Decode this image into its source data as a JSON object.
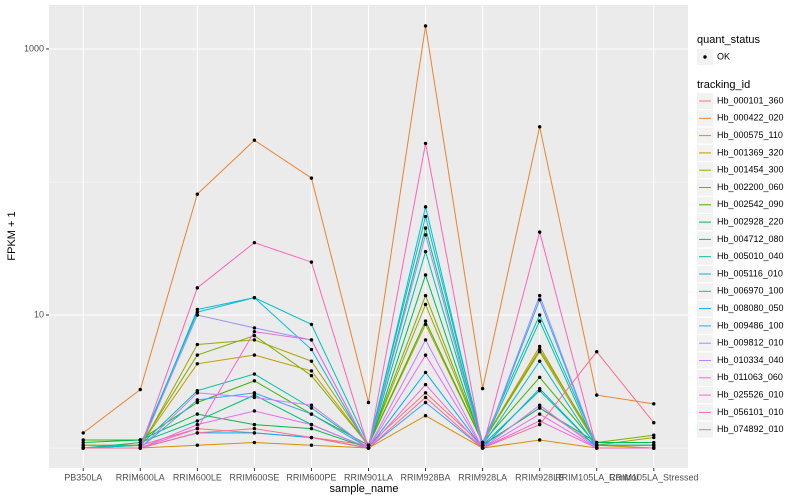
{
  "chart_data": {
    "type": "line",
    "x_label": "sample_name",
    "y_label": "FPKM + 1",
    "log_y": true,
    "grid": true,
    "point_color": "#000000",
    "ylim": [
      0.708,
      2140
    ],
    "yticks": [
      10,
      1000
    ],
    "y_minor_grid": [
      1,
      100
    ],
    "categories": [
      "PB350LA",
      "RRIM600LA",
      "RRIM600LE",
      "RRIM600SE",
      "RRIM600PE",
      "RRIM901LA",
      "RRIM928BA",
      "RRIM928LA",
      "RRIM928LB",
      "RRIM105LA_Control",
      "RRIM105LA_Stressed"
    ],
    "shape_legend": {
      "title": "quant_status",
      "labels": [
        "OK"
      ]
    },
    "legend_title": "tracking_id",
    "series": [
      {
        "name": "Hb_000101_360",
        "color": "#F8766D",
        "values": [
          1.05,
          1.05,
          1.4,
          1.3,
          1.2,
          1.05,
          2.6,
          1.05,
          2.0,
          1.05,
          1.05
        ]
      },
      {
        "name": "Hb_000422_020",
        "color": "#EA8331",
        "values": [
          1.3,
          2.75,
          81,
          206,
          107,
          2.2,
          1490,
          2.8,
          260,
          2.5,
          2.15
        ]
      },
      {
        "name": "Hb_000575_110",
        "color": "#D89000",
        "values": [
          1.0,
          1.0,
          1.05,
          1.1,
          1.05,
          1.0,
          1.75,
          1.0,
          1.15,
          1.0,
          1.0
        ]
      },
      {
        "name": "Hb_001369_320",
        "color": "#C09B00",
        "values": [
          1.0,
          1.05,
          4.3,
          5.0,
          3.8,
          1.05,
          8.5,
          1.1,
          5.8,
          1.05,
          1.0
        ]
      },
      {
        "name": "Hb_001454_300",
        "color": "#A3A500",
        "values": [
          1.0,
          1.0,
          6.0,
          6.5,
          4.5,
          1.05,
          12,
          1.1,
          5.3,
          1.05,
          1.2
        ]
      },
      {
        "name": "Hb_002200_060",
        "color": "#7CAE00",
        "values": [
          1.05,
          1.05,
          5.0,
          7.0,
          3.5,
          1.05,
          14,
          1.1,
          5.5,
          1.1,
          1.25
        ]
      },
      {
        "name": "Hb_002542_090",
        "color": "#39B600",
        "values": [
          1.15,
          1.15,
          2.2,
          3.2,
          1.8,
          1.05,
          9,
          1.1,
          3.4,
          1.05,
          1.05
        ]
      },
      {
        "name": "Hb_002928_220",
        "color": "#00BB4E",
        "values": [
          1.1,
          1.15,
          1.8,
          1.5,
          1.4,
          1.0,
          20,
          1.05,
          2.0,
          1.1,
          1.1
        ]
      },
      {
        "name": "Hb_004712_080",
        "color": "#00BF7D",
        "values": [
          1.0,
          1.1,
          1.6,
          2.5,
          1.5,
          1.0,
          45,
          1.05,
          2.7,
          1.0,
          1.0
        ]
      },
      {
        "name": "Hb_005010_040",
        "color": "#00C1A3",
        "values": [
          1.0,
          1.05,
          2.7,
          3.6,
          2.0,
          1.0,
          30,
          1.05,
          9,
          1.0,
          1.0
        ]
      },
      {
        "name": "Hb_005116_010",
        "color": "#00BFC4",
        "values": [
          1.0,
          1.05,
          10.5,
          13.5,
          8.5,
          1.05,
          55,
          1.1,
          10,
          1.05,
          1.05
        ]
      },
      {
        "name": "Hb_006970_100",
        "color": "#00BAE0",
        "values": [
          1.0,
          1.0,
          11,
          13.5,
          5.5,
          1.0,
          65,
          1.05,
          4.5,
          1.0,
          1.0
        ]
      },
      {
        "name": "Hb_008080_050",
        "color": "#00B0F6",
        "values": [
          1.0,
          1.0,
          1.3,
          1.3,
          1.2,
          1.0,
          3.7,
          1.0,
          2.8,
          1.0,
          1.0
        ]
      },
      {
        "name": "Hb_009486_100",
        "color": "#35A2FF",
        "values": [
          1.0,
          1.0,
          2.3,
          2.6,
          1.8,
          1.0,
          2.2,
          1.0,
          13,
          1.0,
          1.0
        ]
      },
      {
        "name": "Hb_009812_010",
        "color": "#9590FF",
        "values": [
          1.0,
          1.0,
          10,
          8.0,
          6.5,
          1.0,
          40,
          1.0,
          14,
          1.0,
          1.0
        ]
      },
      {
        "name": "Hb_010334_040",
        "color": "#C77CFF",
        "values": [
          1.0,
          1.0,
          2.6,
          2.4,
          2.1,
          1.0,
          6.5,
          1.0,
          2.1,
          1.0,
          1.0
        ]
      },
      {
        "name": "Hb_011063_060",
        "color": "#E76BF3",
        "values": [
          1.0,
          1.0,
          1.5,
          1.9,
          1.5,
          1.0,
          5.0,
          1.0,
          1.8,
          1.0,
          1.0
        ]
      },
      {
        "name": "Hb_025526_010",
        "color": "#FA62DB",
        "values": [
          1.0,
          1.0,
          1.4,
          7.5,
          6.5,
          1.0,
          3.0,
          1.0,
          1.6,
          1.0,
          1.0
        ]
      },
      {
        "name": "Hb_056101_010",
        "color": "#FF62BC",
        "values": [
          1.0,
          1.0,
          16,
          35,
          25,
          1.0,
          195,
          1.0,
          42,
          1.0,
          1.0
        ]
      },
      {
        "name": "Hb_074892_010",
        "color": "#FF6C91",
        "values": [
          1.0,
          1.0,
          1.3,
          1.4,
          1.2,
          1.0,
          2.4,
          1.0,
          1.5,
          5.3,
          1.55
        ]
      }
    ]
  }
}
